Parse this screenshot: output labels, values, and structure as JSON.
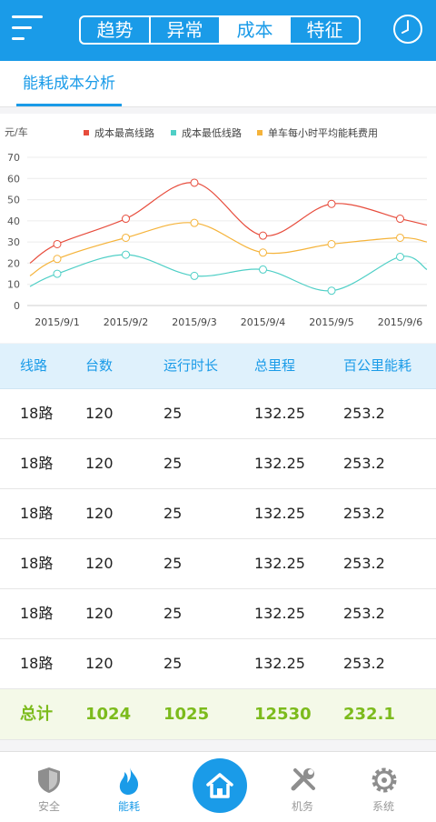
{
  "header": {
    "tabs": [
      "趋势",
      "异常",
      "成本",
      "特征"
    ],
    "active_tab": "成本"
  },
  "subtab": {
    "label": "能耗成本分析"
  },
  "chart_data": {
    "type": "line",
    "unit_label": "元/车",
    "categories": [
      "2015/9/1",
      "2015/9/2",
      "2015/9/3",
      "2015/9/4",
      "2015/9/5",
      "2015/9/6"
    ],
    "ylim": [
      0,
      70
    ],
    "yticks": [
      0,
      10,
      20,
      30,
      40,
      50,
      60,
      70
    ],
    "grid": true,
    "legend_position": "top",
    "series": [
      {
        "name": "成本最高线路",
        "color": "#e74c3c",
        "values": [
          29,
          41,
          58,
          33,
          48,
          41
        ],
        "start": 20,
        "end": 38
      },
      {
        "name": "成本最低线路",
        "color": "#4fcfc6",
        "values": [
          15,
          24,
          14,
          17,
          7,
          23
        ],
        "start": 9,
        "end": 17
      },
      {
        "name": "单车每小时平均能耗费用",
        "color": "#f5b33a",
        "values": [
          22,
          32,
          39,
          25,
          29,
          32
        ],
        "start": 14,
        "end": 30
      }
    ]
  },
  "table": {
    "headers": [
      "线路",
      "台数",
      "运行时长",
      "总里程",
      "百公里能耗"
    ],
    "rows": [
      [
        "18路",
        "120",
        "25",
        "132.25",
        "253.2"
      ],
      [
        "18路",
        "120",
        "25",
        "132.25",
        "253.2"
      ],
      [
        "18路",
        "120",
        "25",
        "132.25",
        "253.2"
      ],
      [
        "18路",
        "120",
        "25",
        "132.25",
        "253.2"
      ],
      [
        "18路",
        "120",
        "25",
        "132.25",
        "253.2"
      ],
      [
        "18路",
        "120",
        "25",
        "132.25",
        "253.2"
      ]
    ],
    "total": [
      "总计",
      "1024",
      "1025",
      "12530",
      "232.1"
    ]
  },
  "tabbar": {
    "items": [
      {
        "label": "安全",
        "icon": "shield-icon"
      },
      {
        "label": "能耗",
        "icon": "flame-icon"
      },
      {
        "label": "",
        "icon": "home-icon"
      },
      {
        "label": "机务",
        "icon": "tools-icon"
      },
      {
        "label": "系统",
        "icon": "gear-icon"
      }
    ],
    "active": "能耗"
  },
  "colors": {
    "primary": "#1a9be8",
    "total_green": "#7cbb1c",
    "header_bg": "#dff1fc"
  }
}
